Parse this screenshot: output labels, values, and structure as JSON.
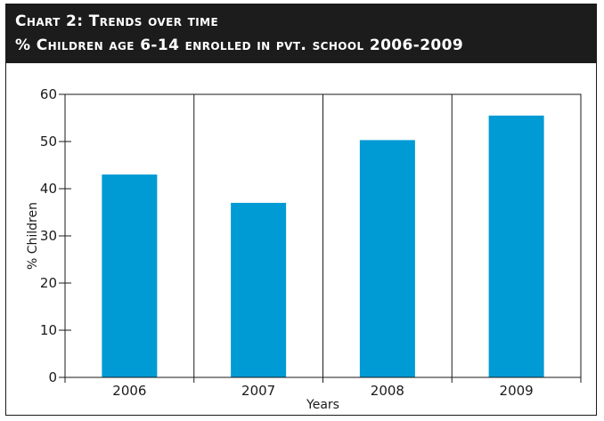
{
  "header": {
    "line1": "Chart 2: Trends over time",
    "line2": "% Children age 6-14 enrolled in pvt. school 2006-2009"
  },
  "colors": {
    "bar": "#009ad4",
    "header_bg": "#1c1c1c",
    "axis": "#1a1a1a"
  },
  "chart_data": {
    "type": "bar",
    "categories": [
      "2006",
      "2007",
      "2008",
      "2009"
    ],
    "values": [
      43,
      37,
      50.3,
      55.5
    ],
    "xlabel": "Years",
    "ylabel": "% Children",
    "ylim": [
      0,
      60
    ],
    "yticks": [
      0,
      10,
      20,
      30,
      40,
      50,
      60
    ],
    "grid": "vertical lines between categories"
  }
}
